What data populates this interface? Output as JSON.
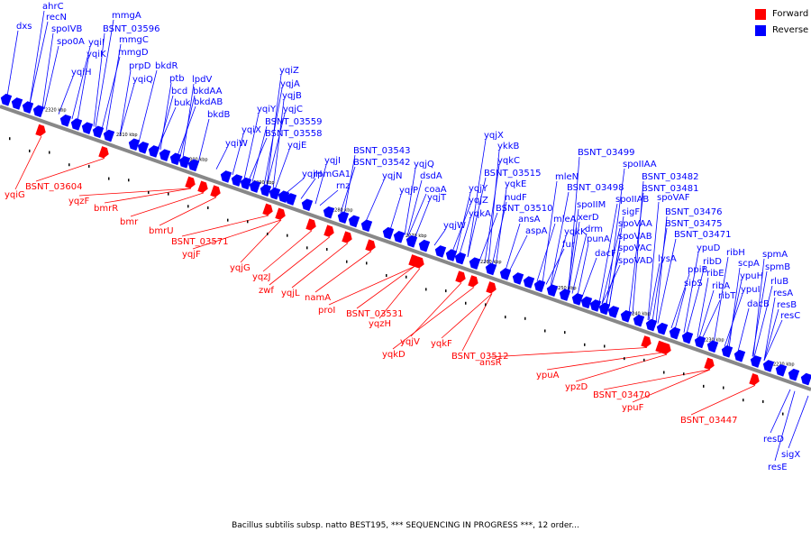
{
  "colors": {
    "forward": "#ff0000",
    "reverse": "#0000ff",
    "backbone": "#888888",
    "ticks": "#000000"
  },
  "legend": [
    {
      "label": "Forward",
      "color": "#ff0000"
    },
    {
      "label": "Reverse",
      "color": "#0000ff"
    }
  ],
  "caption": "Bacillus subtilis subsp. natto BEST195, *** SEQUENCING IN PROGRESS ***, 12 order...",
  "position_labels": [
    "2320 kbp",
    "2310 kbp",
    "2300 kbp",
    "2290 kbp",
    "2280 kbp",
    "2270 kbp",
    "2260 kbp",
    "2250 kbp",
    "2240 kbp",
    "2230 kbp",
    "2220 kbp"
  ],
  "reverse_genes": [
    "dxs",
    "ahrC",
    "recN",
    "spoIVB",
    "spo0A",
    "yqiI",
    "yqiK",
    "yqiH",
    "mmgA",
    "BSNT_03596",
    "mmgC",
    "mmgD",
    "prpD",
    "yqiQ",
    "bkdR",
    "ptb",
    "bcd",
    "buk",
    "lpdV",
    "bkdAA",
    "bkdAB",
    "bkdB",
    "yqiZ",
    "yqjA",
    "yqjB",
    "yqiY",
    "yqjC",
    "yqiX",
    "BSNT_03559",
    "BSNT_03558",
    "yqiW",
    "yqjE",
    "yqjH",
    "yqjI",
    "rpmGA1",
    "rnz",
    "BSNT_03543",
    "BSNT_03542",
    "yqjN",
    "yqjQ",
    "dsdA",
    "coaA",
    "yqjP",
    "yqjT",
    "yqjX",
    "ykkB",
    "yqkC",
    "BSNT_03515",
    "yqkE",
    "yqjY",
    "yqjZ",
    "yqkA",
    "nudF",
    "BSNT_03510",
    "yqjW",
    "ansA",
    "aspA",
    "BSNT_03499",
    "mleN",
    "BSNT_03498",
    "spoIIM",
    "yqkK",
    "mleA",
    "xerD",
    "drm",
    "fur",
    "punA",
    "dacF",
    "spoIIAA",
    "BSNT_03482",
    "BSNT_03481",
    "spoIIAB",
    "spoVAF",
    "sigF",
    "spoVAA",
    "spoVAB",
    "spoVAC",
    "spoVAD",
    "BSNT_03476",
    "BSNT_03475",
    "BSNT_03471",
    "lysA",
    "ypuD",
    "ppiB",
    "sipS",
    "ribH",
    "ribD",
    "ribE",
    "ribA",
    "ribT",
    "scpA",
    "ypuH",
    "ypuI",
    "spmA",
    "spmB",
    "rluB",
    "resA",
    "resB",
    "resC",
    "dacB",
    "resD",
    "sigX",
    "resE"
  ],
  "forward_genes": [
    "yqiG",
    "BSNT_03604",
    "yqzF",
    "bmrR",
    "bmr",
    "bmrU",
    "BSNT_03571",
    "yqjF",
    "yqjG",
    "yqzJ",
    "zwf",
    "yqjL",
    "namA",
    "proI",
    "BSNT_03531",
    "yqzH",
    "yqjV",
    "yqkD",
    "yqkF",
    "BSNT_03512",
    "ansR",
    "ypuA",
    "ypzD",
    "BSNT_03470",
    "ypuF",
    "BSNT_03447"
  ]
}
